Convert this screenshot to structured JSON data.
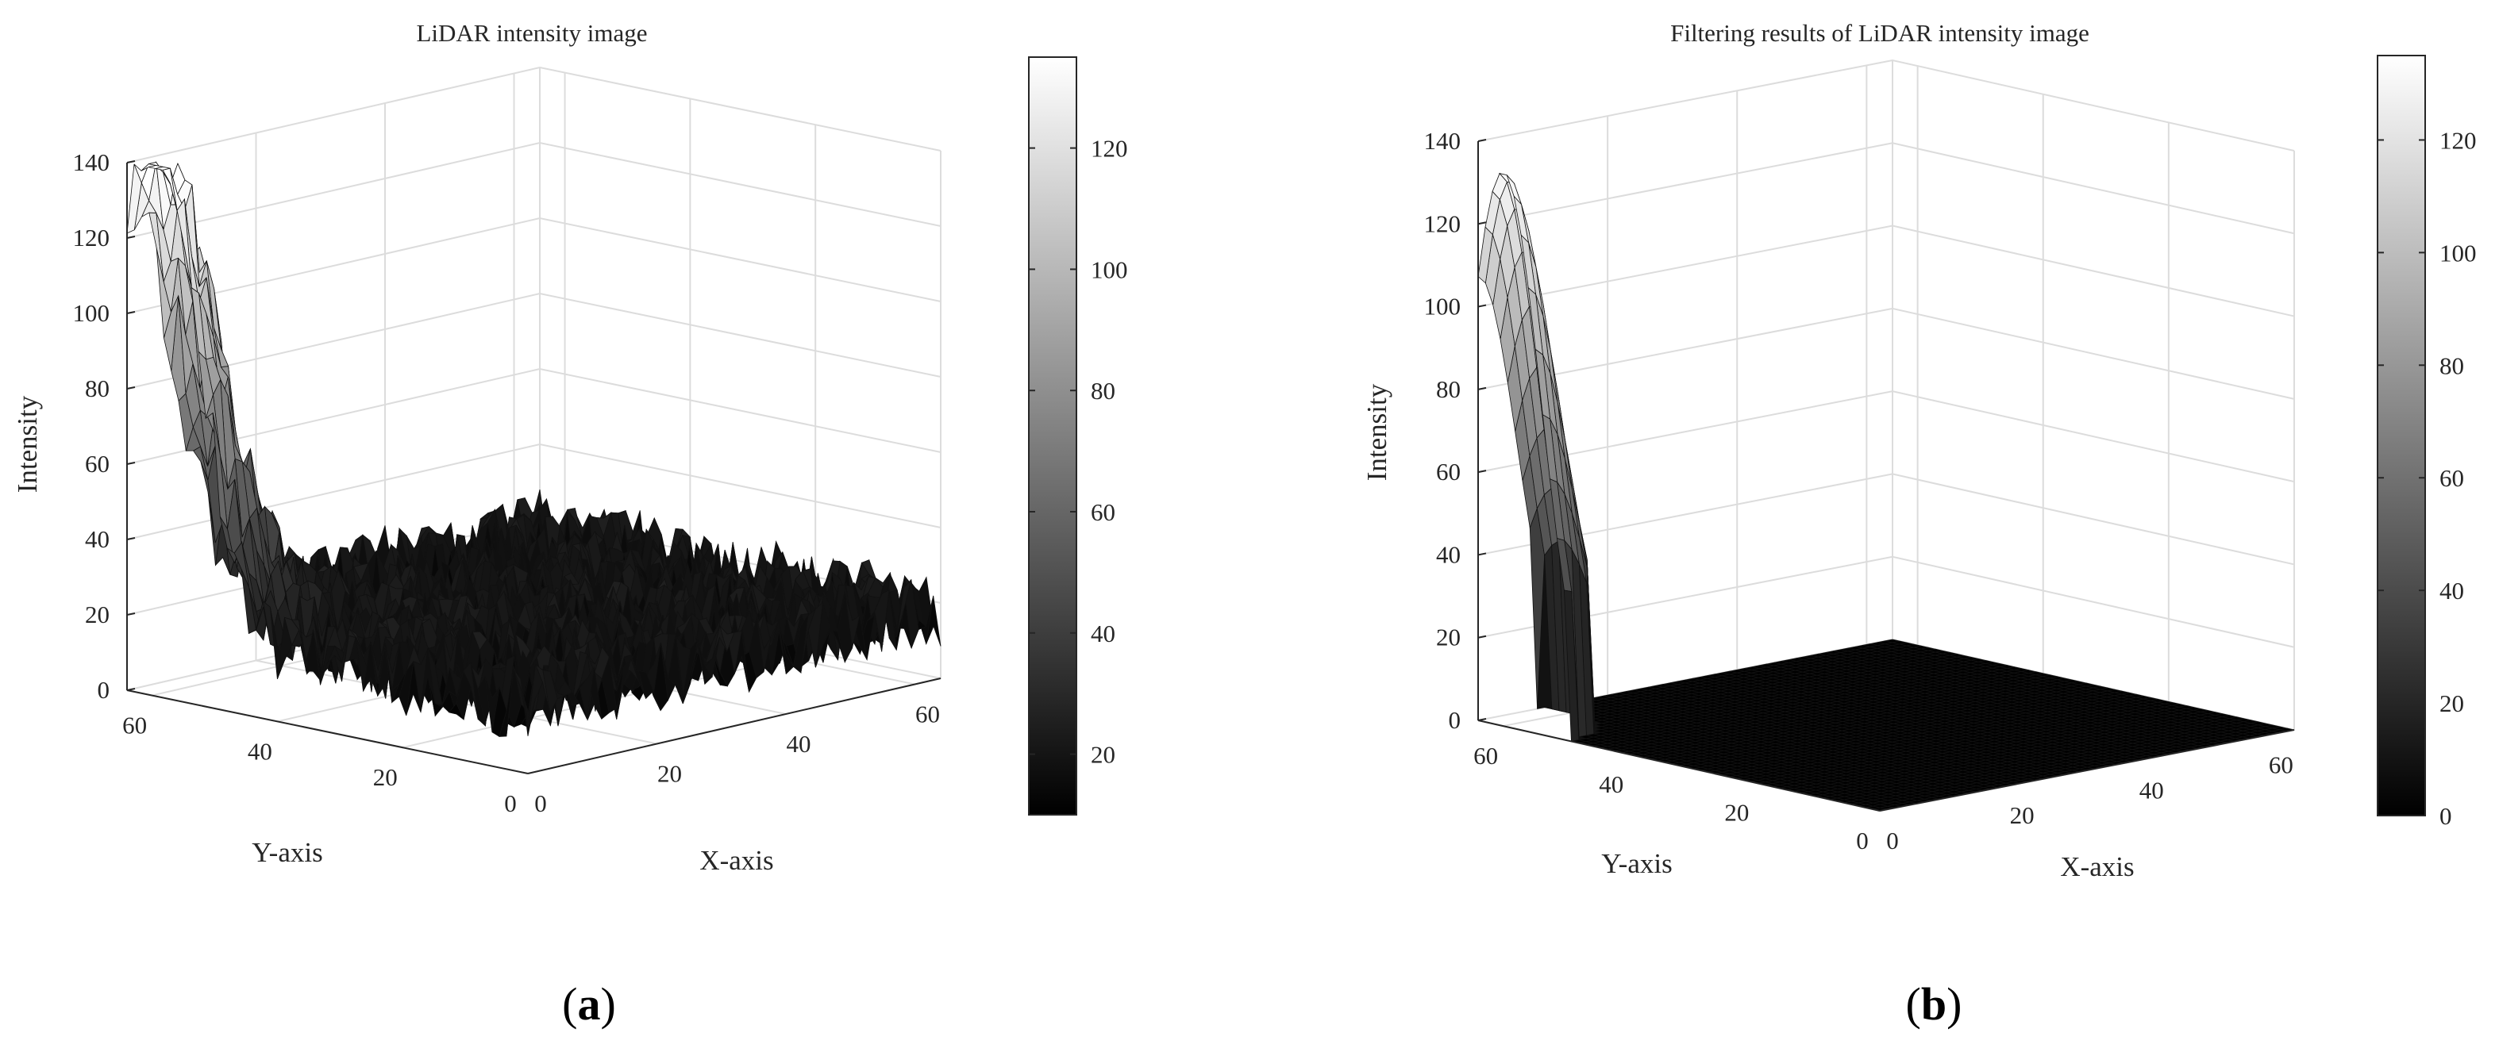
{
  "chart_data": [
    {
      "type": "surface",
      "panel": "(a)",
      "title": "LiDAR intensity image",
      "xlabel": "X-axis",
      "ylabel": "Y-axis",
      "zlabel": "Intensity",
      "xlim": [
        0,
        64
      ],
      "ylim": [
        0,
        64
      ],
      "zlim": [
        0,
        140
      ],
      "x_ticks": [
        0,
        20,
        40,
        60
      ],
      "y_ticks": [
        0,
        20,
        40,
        60
      ],
      "z_ticks": [
        0,
        20,
        40,
        60,
        80,
        100,
        120,
        140
      ],
      "colormap": "gray",
      "colorbar_range": [
        10,
        135
      ],
      "colorbar_ticks": [
        20,
        40,
        60,
        80,
        100,
        120
      ],
      "grid": true,
      "surface": {
        "description_values": {
          "background_mean": 18,
          "background_noise_amplitude": 10,
          "peak_x": 0,
          "peak_y": 60,
          "peak_value": 132,
          "peak_spread": 3.5
        }
      }
    },
    {
      "type": "surface",
      "panel": "(b)",
      "title": "Filtering results of LiDAR intensity image",
      "xlabel": "X-axis",
      "ylabel": "Y-axis",
      "zlabel": "Intensity",
      "xlim": [
        0,
        64
      ],
      "ylim": [
        0,
        64
      ],
      "zlim": [
        0,
        140
      ],
      "x_ticks": [
        0,
        20,
        40,
        60
      ],
      "y_ticks": [
        0,
        20,
        40,
        60
      ],
      "z_ticks": [
        0,
        20,
        40,
        60,
        80,
        100,
        120,
        140
      ],
      "colormap": "gray",
      "colorbar_range": [
        0,
        135
      ],
      "colorbar_ticks": [
        0,
        20,
        40,
        60,
        80,
        100,
        120
      ],
      "grid": true,
      "surface": {
        "description_values": {
          "background_mean": 0,
          "background_noise_amplitude": 0,
          "peak_x": 0,
          "peak_y": 60,
          "peak_value": 134,
          "peak_spread": 3.0
        }
      }
    }
  ],
  "captions": {
    "a_label": "a",
    "b_label": "b"
  }
}
